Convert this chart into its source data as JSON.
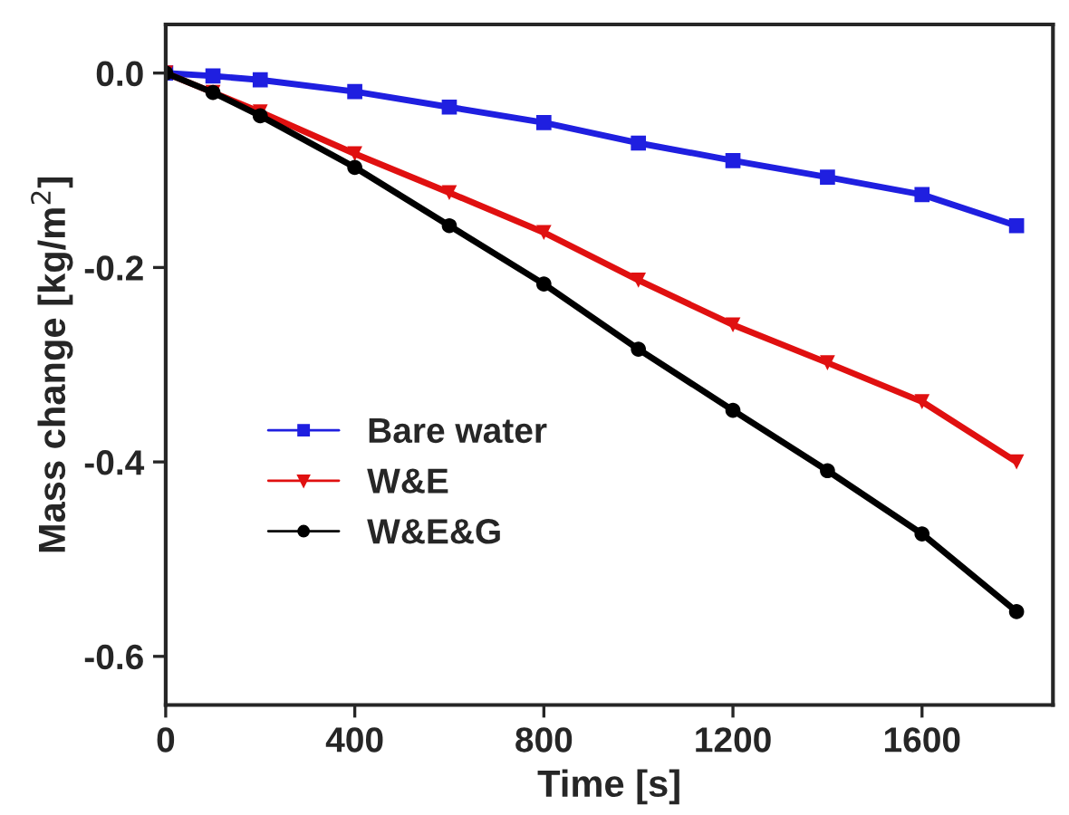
{
  "chart_data": {
    "type": "line",
    "xlabel": "Time [s]",
    "ylabel": "Mass change [kg/m$^{2}$]",
    "x": [
      0,
      100,
      200,
      400,
      600,
      800,
      1000,
      1200,
      1400,
      1600,
      1800
    ],
    "series": [
      {
        "name": "Bare water",
        "color": "#1f1fe0",
        "marker": "square",
        "values": [
          0,
          -0.003,
          -0.007,
          -0.019,
          -0.035,
          -0.051,
          -0.072,
          -0.09,
          -0.107,
          -0.125,
          -0.157
        ]
      },
      {
        "name": "W&E",
        "color": "#e01010",
        "marker": "triangle",
        "values": [
          0,
          -0.02,
          -0.04,
          -0.083,
          -0.123,
          -0.164,
          -0.213,
          -0.259,
          -0.298,
          -0.338,
          -0.4
        ]
      },
      {
        "name": "W&E&G",
        "color": "#000000",
        "marker": "circle",
        "values": [
          0,
          -0.02,
          -0.044,
          -0.097,
          -0.157,
          -0.217,
          -0.284,
          -0.347,
          -0.409,
          -0.474,
          -0.554
        ]
      }
    ],
    "xlim": [
      0,
      1877
    ],
    "ylim": [
      -0.65,
      0.05
    ],
    "xticks": [
      0,
      400,
      800,
      1200,
      1600
    ],
    "yticks": [
      {
        "value": 0,
        "label": "0.0"
      },
      {
        "value": -0.2,
        "label": "-0.2"
      },
      {
        "value": -0.4,
        "label": "-0.4"
      },
      {
        "value": -0.6,
        "label": "-0.6"
      }
    ],
    "legend": "bottom left",
    "grid": false
  }
}
